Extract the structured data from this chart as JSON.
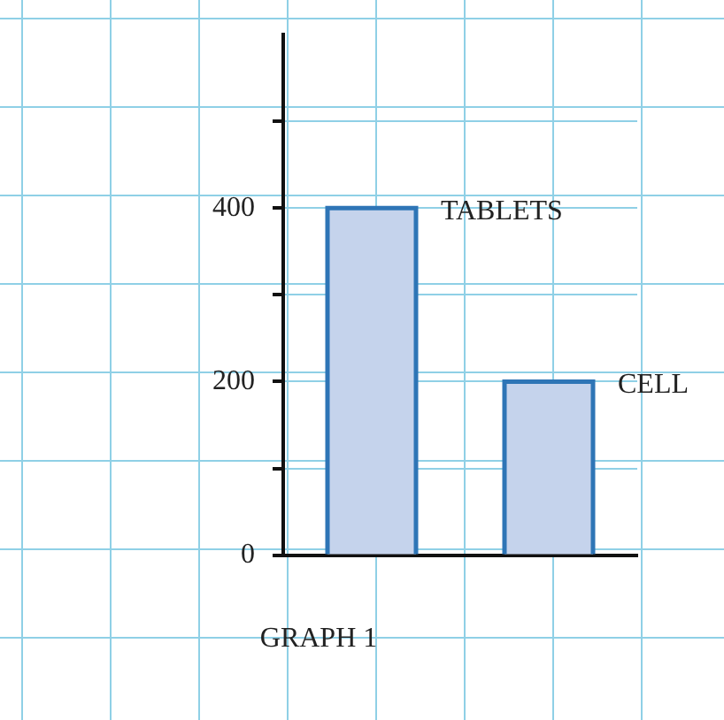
{
  "chart_data": {
    "type": "bar",
    "title": "GRAPH 1",
    "categories": [
      null,
      null
    ],
    "annotations": [
      "TABLETS",
      "CELL"
    ],
    "values": [
      400,
      200
    ],
    "color": "#c5d3ec",
    "ylim": [
      0,
      600
    ],
    "yticks": [
      0,
      {
        "value": 100,
        "label": null
      },
      200,
      {
        "value": 300,
        "label": null
      },
      400,
      {
        "value": 500,
        "label": null
      }
    ],
    "tick_labels": "y",
    "grid": true,
    "legend": false
  }
}
